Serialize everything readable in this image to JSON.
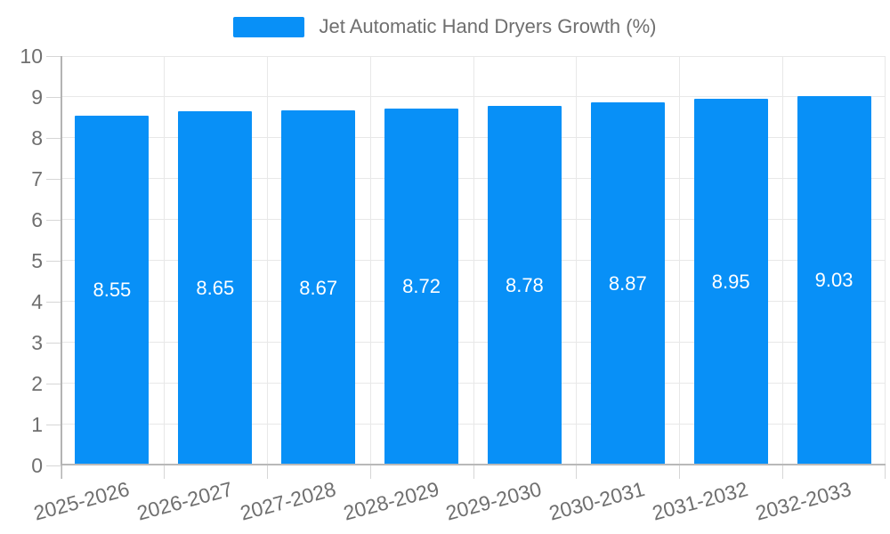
{
  "chart_data": {
    "type": "bar",
    "title": "Jet Automatic Hand Dryers Growth (%)",
    "series": [
      {
        "name": "Jet Automatic Hand Dryers Growth (%)",
        "values": [
          8.55,
          8.65,
          8.67,
          8.72,
          8.78,
          8.87,
          8.95,
          9.03
        ]
      }
    ],
    "categories": [
      "2025-2026",
      "2026-2027",
      "2027-2028",
      "2028-2029",
      "2029-2030",
      "2030-2031",
      "2031-2032",
      "2032-2033"
    ],
    "data_labels": [
      "8.55",
      "8.65",
      "8.67",
      "8.72",
      "8.78",
      "8.87",
      "8.95",
      "9.03"
    ],
    "xlabel": "",
    "ylabel": "",
    "ylim": [
      0,
      10
    ],
    "yticks": [
      "0",
      "1",
      "2",
      "3",
      "4",
      "5",
      "6",
      "7",
      "8",
      "9",
      "10"
    ],
    "grid": true,
    "legend_position": "top",
    "colors": {
      "bar": "#0890F7",
      "grid": "#e8e8e8",
      "axis": "#b3b3b3",
      "tick": "#d6d6d6",
      "text": "#6f6f6f",
      "data_label_text": "#ffffff"
    }
  }
}
